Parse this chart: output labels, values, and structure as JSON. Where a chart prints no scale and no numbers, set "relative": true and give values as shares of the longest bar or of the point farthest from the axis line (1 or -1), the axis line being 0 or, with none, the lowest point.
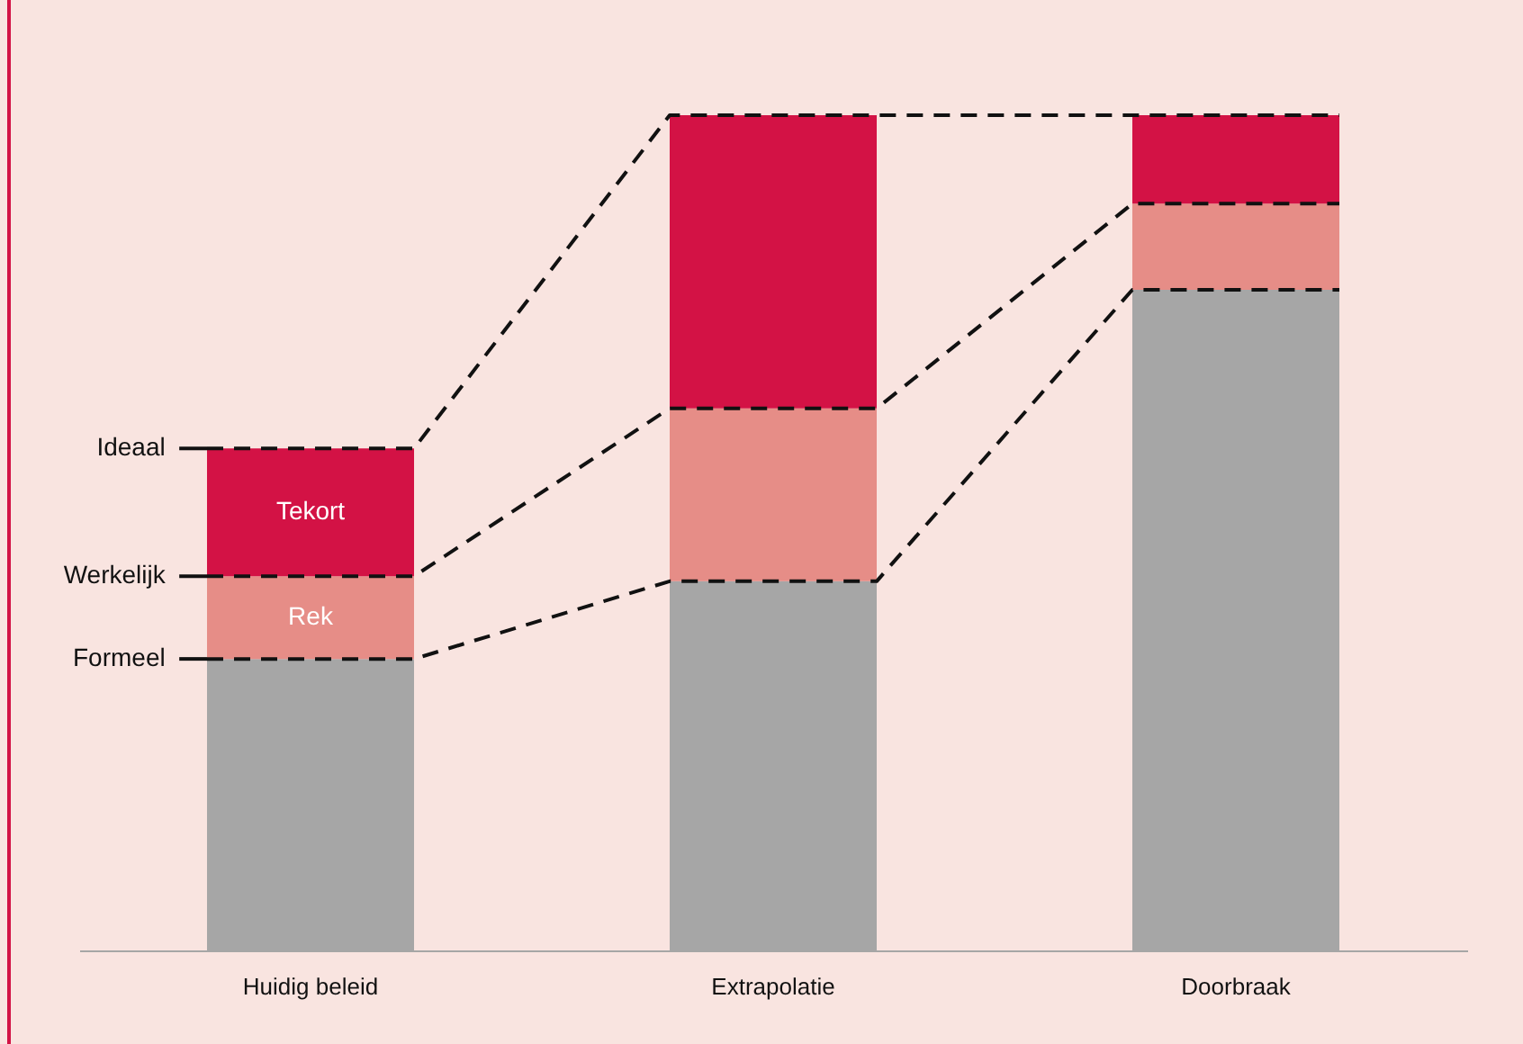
{
  "chart_data": {
    "type": "bar",
    "stacked": true,
    "relative": true,
    "categories": [
      "Huidig beleid",
      "Extrapolatie",
      "Doorbraak"
    ],
    "series": [
      {
        "color": "#a6a6a6",
        "values": [
          0.349,
          0.442,
          0.791
        ]
      },
      {
        "name": "Rek",
        "color": "#e68d87",
        "values": [
          0.099,
          0.207,
          0.103
        ]
      },
      {
        "name": "Tekort",
        "color": "#d31245",
        "values": [
          0.153,
          0.351,
          0.106
        ]
      }
    ],
    "annotations": [
      "Ideaal",
      "Werkelijk",
      "Formeel"
    ]
  }
}
